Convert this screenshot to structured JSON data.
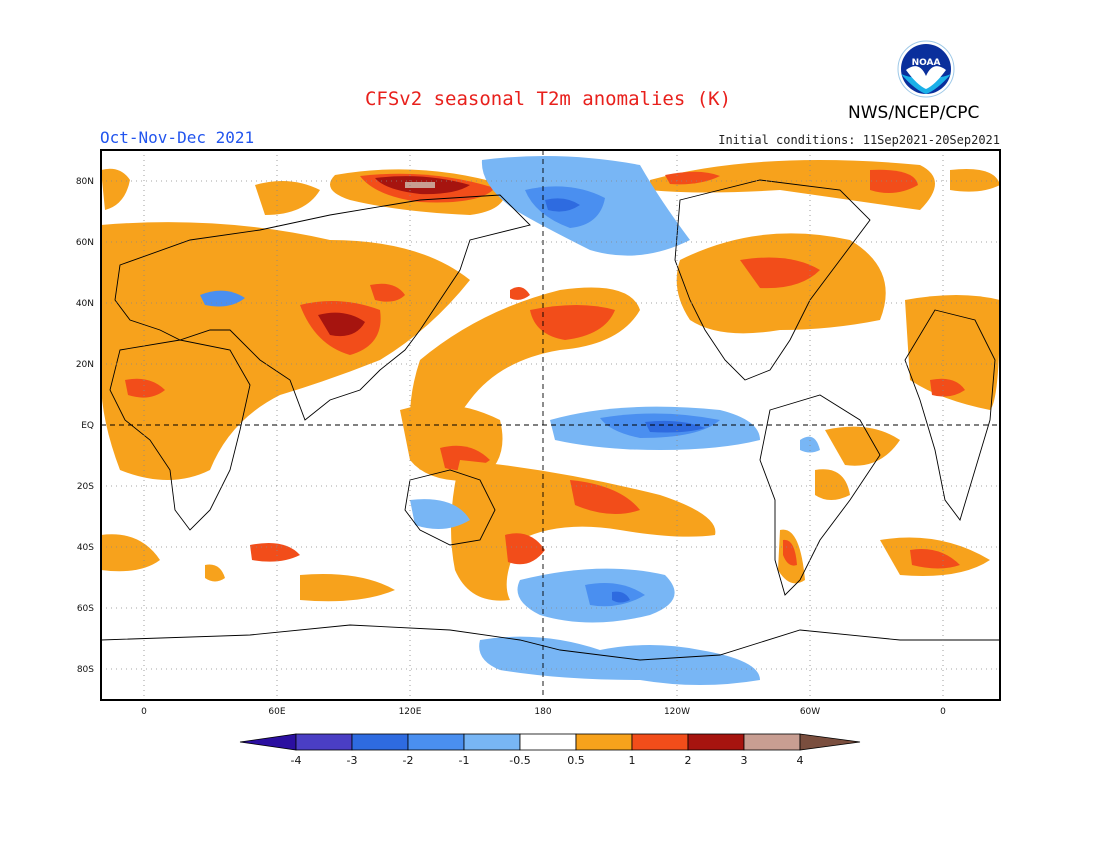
{
  "header": {
    "title": "CFSv2 seasonal T2m anomalies (K)",
    "agency": "NWS/NCEP/CPC",
    "period": "Oct-Nov-Dec 2021",
    "initial_conditions": "Initial conditions: 11Sep2021-20Sep2021",
    "logo_text": "NOAA"
  },
  "map": {
    "lat_labels": [
      "80N",
      "60N",
      "40N",
      "20N",
      "EQ",
      "20S",
      "40S",
      "60S",
      "80S"
    ],
    "lon_labels": [
      "0",
      "60E",
      "120E",
      "180",
      "120W",
      "60W",
      "0"
    ],
    "lat_values": [
      80,
      60,
      40,
      20,
      0,
      -20,
      -40,
      -60,
      -80
    ],
    "lon_values": [
      0,
      60,
      120,
      180,
      240,
      300,
      360
    ]
  },
  "colorbar": {
    "labels": [
      "-4",
      "-3",
      "-2",
      "-1",
      "-0.5",
      "0.5",
      "1",
      "2",
      "3",
      "4"
    ],
    "colors": [
      "#2b0fa0",
      "#4a3ec4",
      "#2e6be0",
      "#4a8ff0",
      "#78b6f5",
      "#ffffff",
      "#f7a21c",
      "#f24d1a",
      "#a6140f",
      "#c89e92",
      "#7a4e3e"
    ]
  },
  "anomaly_colors": {
    "warm1": "#f7a21c",
    "warm2": "#f24d1a",
    "warm3": "#a6140f",
    "warm4": "#c89e92",
    "cool1": "#78b6f5",
    "cool2": "#4a8ff0",
    "cool3": "#2e6be0"
  }
}
